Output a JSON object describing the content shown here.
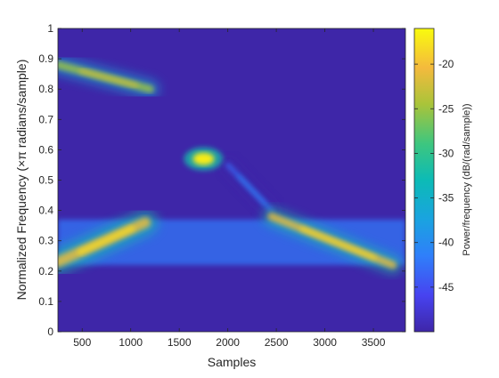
{
  "chart_data": {
    "type": "heatmap",
    "xlabel": "Samples",
    "ylabel": "Normalized Frequency (×π radians/sample)",
    "colorbar_label": "Power/frequency (dB/(rad/sample))",
    "xlim": [
      250,
      3830
    ],
    "ylim": [
      0,
      1
    ],
    "clim": [
      -50,
      -16
    ],
    "xticks": [
      500,
      1000,
      1500,
      2000,
      2500,
      3000,
      3500
    ],
    "xtick_labels": [
      "500",
      "1000",
      "1500",
      "2000",
      "2500",
      "3000",
      "3500"
    ],
    "yticks": [
      0,
      0.1,
      0.2,
      0.3,
      0.4,
      0.5,
      0.6,
      0.7,
      0.8,
      0.9,
      1
    ],
    "ytick_labels": [
      "0",
      "0.1",
      "0.2",
      "0.3",
      "0.4",
      "0.5",
      "0.6",
      "0.7",
      "0.8",
      "0.9",
      "1"
    ],
    "cticks": [
      -45,
      -40,
      -35,
      -30,
      -25,
      -20
    ],
    "ctick_labels": [
      "-45",
      "-40",
      "-35",
      "-30",
      "-25",
      "-20"
    ],
    "colormap": "parula",
    "background_level": -50,
    "features": [
      {
        "kind": "chirp",
        "x_start": 250,
        "x_end": 1200,
        "y_start": 0.88,
        "y_end": 0.8,
        "peak_db": -22,
        "width": 0.05
      },
      {
        "kind": "chirp",
        "x_start": 250,
        "x_end": 1150,
        "y_start": 0.23,
        "y_end": 0.36,
        "peak_db": -18,
        "width": 0.07
      },
      {
        "kind": "blob",
        "x": 1750,
        "y": 0.57,
        "peak_db": -17
      },
      {
        "kind": "chirp",
        "x_start": 2000,
        "x_end": 2450,
        "y_start": 0.55,
        "y_end": 0.4,
        "peak_db": -40,
        "width": 0.03
      },
      {
        "kind": "chirp",
        "x_start": 2450,
        "x_end": 3700,
        "y_start": 0.38,
        "y_end": 0.22,
        "peak_db": -18,
        "width": 0.05
      },
      {
        "kind": "band",
        "x_start": 250,
        "x_end": 3830,
        "y_min": 0.22,
        "y_max": 0.37,
        "level_db": -42
      }
    ]
  }
}
